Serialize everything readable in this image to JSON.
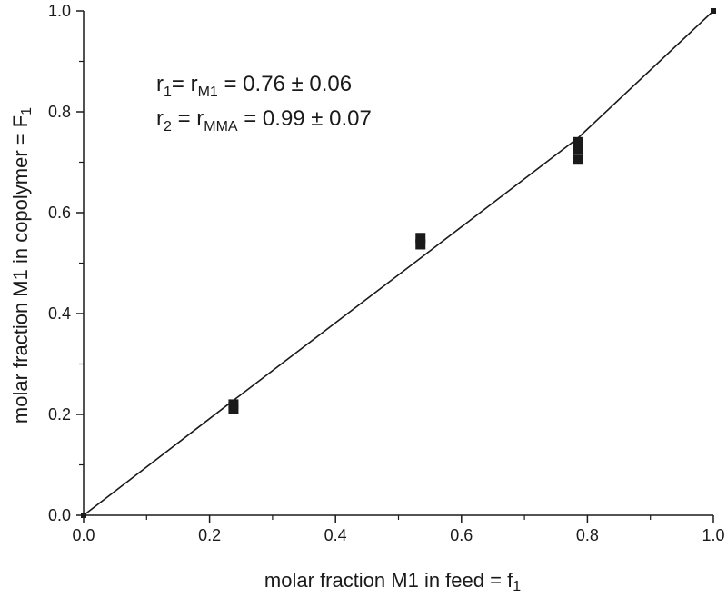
{
  "chart_data": {
    "type": "scatter",
    "xlabel": "molar fraction M1 in feed = f",
    "xlabel_sub": "1",
    "ylabel": "molar fraction M1 in copolymer = F",
    "ylabel_sub": "1",
    "xlim": [
      0,
      1.0
    ],
    "ylim": [
      0,
      1.0
    ],
    "xticks": [
      "0.0",
      "0.2",
      "0.4",
      "0.6",
      "0.8",
      "1.0"
    ],
    "yticks": [
      "0.0",
      "0.2",
      "0.4",
      "0.6",
      "0.8",
      "1.0"
    ],
    "tick_values": [
      0.0,
      0.2,
      0.4,
      0.6,
      0.8,
      1.0
    ],
    "grid": false,
    "colors": {
      "marker": "#1a1a1a",
      "line": "#1a1a1a",
      "axis": "#1a1a1a"
    },
    "annotations": [
      {
        "parts": [
          [
            "r",
            ""
          ],
          [
            "1",
            "sub"
          ],
          [
            "= r",
            ""
          ],
          [
            "M1",
            "sub"
          ],
          [
            " = 0.76 ± 0.06",
            ""
          ]
        ]
      },
      {
        "parts": [
          [
            "r",
            ""
          ],
          [
            "2",
            "sub"
          ],
          [
            " = r",
            ""
          ],
          [
            "MMA",
            "sub"
          ],
          [
            " = 0.99 ± 0.07",
            ""
          ]
        ]
      }
    ],
    "points": [
      {
        "x": 0.0,
        "y": 0.0
      },
      {
        "x": 0.238,
        "y": 0.22
      },
      {
        "x": 0.238,
        "y": 0.21
      },
      {
        "x": 0.535,
        "y": 0.55
      },
      {
        "x": 0.535,
        "y": 0.537
      },
      {
        "x": 0.785,
        "y": 0.74
      },
      {
        "x": 0.785,
        "y": 0.725
      },
      {
        "x": 0.785,
        "y": 0.705
      },
      {
        "x": 1.0,
        "y": 1.0
      }
    ],
    "fit_line": {
      "x": [
        0.0,
        0.238,
        0.535,
        0.785,
        1.0
      ],
      "y": [
        0.0,
        0.228,
        0.51,
        0.748,
        1.0
      ]
    }
  }
}
